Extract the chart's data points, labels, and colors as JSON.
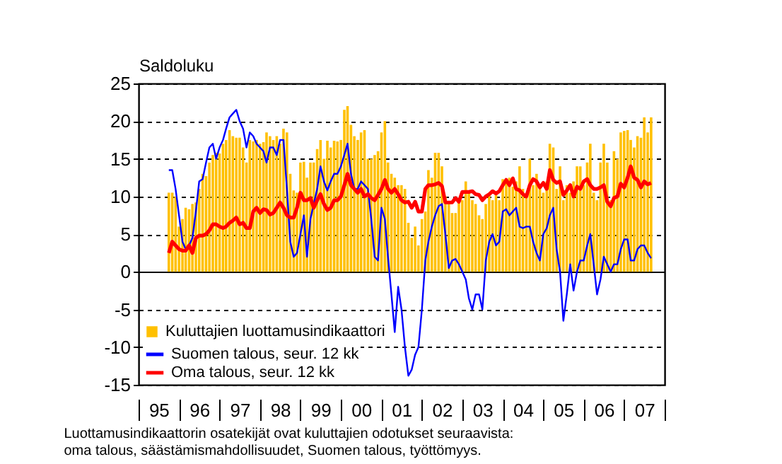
{
  "chart_data": {
    "type": "bar",
    "ylabel": "Saldoluku",
    "x": [
      "1995-10",
      "1995-11",
      "1995-12",
      "1996-01",
      "1996-02",
      "1996-03",
      "1996-04",
      "1996-05",
      "1996-06",
      "1996-07",
      "1996-08",
      "1996-09",
      "1996-10",
      "1996-11",
      "1996-12",
      "1997-01",
      "1997-02",
      "1997-03",
      "1997-04",
      "1997-05",
      "1997-06",
      "1997-07",
      "1997-08",
      "1997-09",
      "1997-10",
      "1997-11",
      "1997-12",
      "1998-01",
      "1998-02",
      "1998-03",
      "1998-04",
      "1998-05",
      "1998-06",
      "1998-07",
      "1998-08",
      "1998-09",
      "1998-10",
      "1998-11",
      "1998-12",
      "1999-01",
      "1999-02",
      "1999-03",
      "1999-04",
      "1999-05",
      "1999-06",
      "1999-07",
      "1999-08",
      "1999-09",
      "1999-10",
      "1999-11",
      "1999-12",
      "2000-01",
      "2000-02",
      "2000-03",
      "2000-04",
      "2000-05",
      "2000-06",
      "2000-07",
      "2000-08",
      "2000-09",
      "2000-10",
      "2000-11",
      "2000-12",
      "2001-01",
      "2001-02",
      "2001-03",
      "2001-04",
      "2001-05",
      "2001-06",
      "2001-07",
      "2001-08",
      "2001-09",
      "2001-10",
      "2001-11",
      "2001-12",
      "2002-01",
      "2002-02",
      "2002-03",
      "2002-04",
      "2002-05",
      "2002-06",
      "2002-07",
      "2002-08",
      "2002-09",
      "2002-10",
      "2002-11",
      "2002-12",
      "2003-01",
      "2003-02",
      "2003-03",
      "2003-04",
      "2003-05",
      "2003-06",
      "2003-07",
      "2003-08",
      "2003-09",
      "2003-10",
      "2003-11",
      "2003-12",
      "2004-01",
      "2004-02",
      "2004-03",
      "2004-04",
      "2004-05",
      "2004-06",
      "2004-07",
      "2004-08",
      "2004-09",
      "2004-10",
      "2004-11",
      "2004-12",
      "2005-01",
      "2005-02",
      "2005-03",
      "2005-04",
      "2005-05",
      "2005-06",
      "2005-07",
      "2005-08",
      "2005-09",
      "2005-10",
      "2005-11",
      "2005-12",
      "2006-01",
      "2006-02",
      "2006-03",
      "2006-04",
      "2006-05",
      "2006-06",
      "2006-07",
      "2006-08",
      "2006-09",
      "2006-10",
      "2006-11",
      "2006-12",
      "2007-01",
      "2007-02",
      "2007-03",
      "2007-04",
      "2007-05",
      "2007-06",
      "2007-07",
      "2007-08",
      "2007-09"
    ],
    "series": [
      {
        "name": "Kuluttajien luottamusindikaattori",
        "color": "#ffc000",
        "values": [
          10.5,
          10.5,
          10,
          6,
          7,
          8.5,
          8.3,
          9,
          9.2,
          11,
          13,
          12.7,
          14.5,
          15.5,
          15.8,
          15.7,
          17,
          17.5,
          18.8,
          18,
          17.8,
          17.8,
          16.5,
          14.5,
          17.5,
          17.3,
          17.5,
          17,
          17.2,
          18.5,
          18,
          17.5,
          18,
          17,
          19,
          18.5,
          13,
          10.8,
          10.5,
          14.5,
          14.6,
          12.5,
          14.5,
          14.5,
          16.3,
          17.5,
          15,
          17.4,
          16.5,
          17.4,
          17.3,
          17.5,
          21.5,
          22,
          19.5,
          18,
          17.5,
          18.5,
          18.8,
          15,
          15,
          15.5,
          16,
          18.5,
          20,
          14.5,
          13,
          12.5,
          11.5,
          11.5,
          11,
          6.5,
          4.5,
          6,
          3.5,
          7,
          8,
          13.5,
          12.5,
          15.8,
          15.8,
          14,
          10,
          9,
          7.8,
          7.8,
          9.5,
          9.5,
          12,
          10.5,
          9.5,
          9,
          7.5,
          7,
          9,
          10.3,
          9.5,
          10.5,
          9.5,
          12.3,
          12,
          12.5,
          11.3,
          12,
          14,
          11,
          10,
          15,
          11.5,
          13,
          11,
          10.5,
          12,
          17,
          16.5,
          11,
          14,
          9.5,
          11.5,
          10.5,
          12,
          14,
          14,
          11.5,
          14.5,
          17,
          10.5,
          9.5,
          14.5,
          17,
          14.5,
          9.5,
          16,
          15,
          18.5,
          18.7,
          18.8,
          17.5,
          16.5,
          18,
          17.8,
          20.5,
          18.5,
          20.5
        ]
      },
      {
        "name": "Suomen talous, seur. 12 kk",
        "type": "line",
        "color": "#0000ff",
        "values": [
          13.5,
          13.5,
          11,
          7.5,
          4,
          3,
          3.5,
          4.5,
          8,
          12,
          12.3,
          14.5,
          16.5,
          17,
          15,
          16.5,
          17.5,
          19,
          20.5,
          21,
          21.5,
          20,
          19,
          16.5,
          18.5,
          18,
          17,
          16.5,
          16,
          14.5,
          16.5,
          16.5,
          15.5,
          17.5,
          17.5,
          11,
          4,
          2,
          2.5,
          5,
          7.5,
          2,
          7,
          9,
          11,
          14,
          12,
          10.8,
          12,
          13,
          13,
          14,
          15.5,
          17,
          13,
          11,
          11,
          12,
          11.5,
          11,
          7,
          2,
          1.5,
          8.5,
          7,
          2,
          -3,
          -8,
          -2,
          -5,
          -10,
          -13.8,
          -13,
          -11,
          -10,
          -5,
          1.5,
          4,
          6,
          7.5,
          8.7,
          9,
          5,
          0.5,
          1.5,
          1.7,
          1,
          0,
          -1,
          -3.5,
          -5,
          -3,
          -3,
          -5,
          1.5,
          4,
          5,
          3.5,
          4,
          8,
          8.3,
          7.5,
          8,
          8.5,
          6,
          5.8,
          6,
          6,
          4,
          2.5,
          1.5,
          5,
          5.8,
          7.5,
          8.5,
          3,
          0,
          -6.5,
          -3,
          1,
          -2.5,
          0,
          1.5,
          1.5,
          3.5,
          5,
          1,
          -3,
          -1,
          2,
          1,
          0,
          1,
          1,
          3,
          4.3,
          4.3,
          1.5,
          1.5,
          3,
          3.5,
          3.5,
          2.5,
          1.8
        ]
      },
      {
        "name": "Oma talous, seur. 12 kk",
        "type": "line",
        "color": "#ff0000",
        "values": [
          2.5,
          4,
          3.5,
          3,
          2.8,
          2.8,
          3.5,
          2.5,
          4.5,
          4.8,
          4.8,
          5,
          5.5,
          6.3,
          6.3,
          6,
          5.8,
          6,
          6.5,
          6.8,
          7.2,
          6.3,
          6.5,
          5.8,
          5.8,
          8,
          8.5,
          7.8,
          8.3,
          8.2,
          7.6,
          7.8,
          8.5,
          9.2,
          8.5,
          7.5,
          7.2,
          7.2,
          8.5,
          10.5,
          9.5,
          9.5,
          9.8,
          8.5,
          9.5,
          10.3,
          9,
          8.2,
          8.5,
          9.5,
          9.5,
          10,
          11.5,
          13,
          11.5,
          11,
          10.5,
          11,
          10,
          10.3,
          9.8,
          9.5,
          10.2,
          11,
          12.2,
          11,
          10.5,
          11,
          10.3,
          9.5,
          9.2,
          9.3,
          8.5,
          9.3,
          8,
          8,
          11,
          11.5,
          11.5,
          11.6,
          11.8,
          11.4,
          9.2,
          9.2,
          9.2,
          9.8,
          9.3,
          10.6,
          10.6,
          10.6,
          10.7,
          10.3,
          10.2,
          9.5,
          10,
          10.3,
          10.7,
          10.4,
          10.7,
          11.5,
          12.2,
          11.5,
          12.4,
          11,
          10.8,
          10.3,
          10,
          11.5,
          12.3,
          12,
          11.2,
          11.8,
          11,
          13.5,
          12.2,
          11.8,
          12,
          10.2,
          10.8,
          11.5,
          10,
          11.3,
          11,
          12,
          12.3,
          11.5,
          11,
          11,
          11.2,
          11.5,
          9.3,
          8.7,
          9.8,
          10,
          11.7,
          11.2,
          12.5,
          14,
          12.5,
          12.2,
          11.2,
          12,
          11.6,
          11.8
        ]
      }
    ],
    "xlim": [
      "1995",
      "2008"
    ],
    "xticks": [
      {
        "value": "1995",
        "label": null
      },
      {
        "value": "1995-07",
        "label": "95"
      },
      {
        "value": "1996",
        "label": null
      },
      {
        "value": "1996-07",
        "label": "96"
      },
      {
        "value": "1997",
        "label": null
      },
      {
        "value": "1997-07",
        "label": "97"
      },
      {
        "value": "1998",
        "label": null
      },
      {
        "value": "1998-07",
        "label": "98"
      },
      {
        "value": "1999",
        "label": null
      },
      {
        "value": "1999-07",
        "label": "99"
      },
      {
        "value": "2000",
        "label": null
      },
      {
        "value": "2000-07",
        "label": "00"
      },
      {
        "value": "2001",
        "label": null
      },
      {
        "value": "2001-07",
        "label": "01"
      },
      {
        "value": "2002",
        "label": null
      },
      {
        "value": "2002-07",
        "label": "02"
      },
      {
        "value": "2003",
        "label": null
      },
      {
        "value": "2003-07",
        "label": "03"
      },
      {
        "value": "2004",
        "label": null
      },
      {
        "value": "2004-07",
        "label": "04"
      },
      {
        "value": "2005",
        "label": null
      },
      {
        "value": "2005-07",
        "label": "05"
      },
      {
        "value": "2006",
        "label": null
      },
      {
        "value": "2006-07",
        "label": "06"
      },
      {
        "value": "2007",
        "label": null
      },
      {
        "value": "2007-07",
        "label": "07"
      },
      {
        "value": "2008",
        "label": null
      }
    ],
    "ylim": [
      -15,
      25
    ],
    "yticks": [
      -15,
      -10,
      -5,
      0,
      5,
      10,
      15,
      20,
      25
    ],
    "grid": "y",
    "legend": "bottom left",
    "annotations": [
      "Luottamusindikaattorin osatekijät ovat kuluttajien odotukset seuraavista:",
      "oma talous, säästämismahdollisuudet, Suomen talous, työttömyys."
    ]
  }
}
